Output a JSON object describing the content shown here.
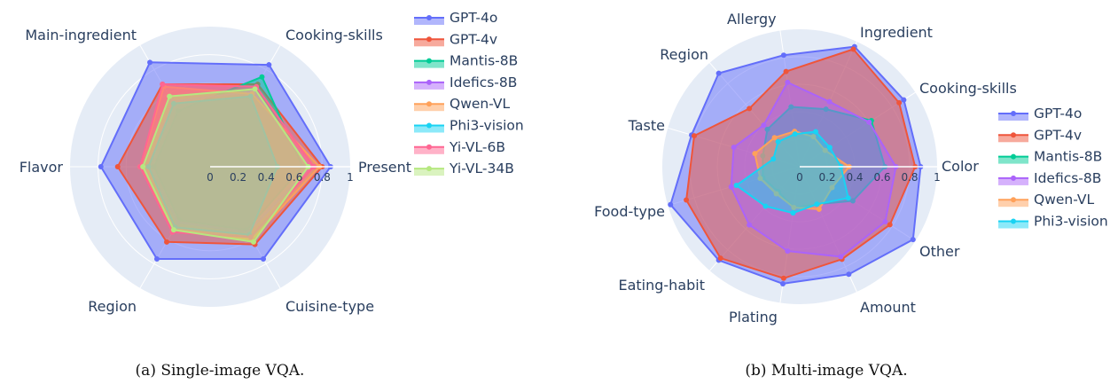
{
  "chart_data": [
    {
      "type": "radar",
      "caption": "(a) Single-image VQA.",
      "axes": [
        "Presentation",
        "Cooking-skills",
        "Main-ingredient",
        "Flavor",
        "Region",
        "Cuisine-type"
      ],
      "axis_labels_shown": [
        "Present",
        "Cooking-skills",
        "Main-ingredient",
        "Flavor",
        "Region",
        "Cuisine-type"
      ],
      "range": [
        0,
        1
      ],
      "ticks": [
        "0",
        "0.2",
        "0.4",
        "0.6",
        "0.8",
        "1"
      ],
      "legend_position": "right",
      "series": [
        {
          "name": "GPT-4o",
          "color": "#636efa",
          "values": [
            0.86,
            0.84,
            0.86,
            0.78,
            0.76,
            0.76
          ]
        },
        {
          "name": "GPT-4v",
          "color": "#ef553b",
          "values": [
            0.8,
            0.68,
            0.68,
            0.66,
            0.62,
            0.64
          ]
        },
        {
          "name": "Mantis-8B",
          "color": "#00cc96",
          "values": [
            0.66,
            0.74,
            0.46,
            0.4,
            0.44,
            0.52
          ]
        },
        {
          "name": "Idefics-8B",
          "color": "#ab63fa",
          "values": [
            0.72,
            0.62,
            0.54,
            0.44,
            0.46,
            0.54
          ]
        },
        {
          "name": "Qwen-VL",
          "color": "#ffa15a",
          "values": [
            0.78,
            0.6,
            0.66,
            0.5,
            0.52,
            0.6
          ]
        },
        {
          "name": "Phi3-vision",
          "color": "#19d3f3",
          "values": [
            0.48,
            0.58,
            0.52,
            0.44,
            0.5,
            0.56
          ]
        },
        {
          "name": "Yi-VL-6B",
          "color": "#ff6692",
          "values": [
            0.74,
            0.66,
            0.68,
            0.5,
            0.54,
            0.58
          ]
        },
        {
          "name": "Yi-VL-34B",
          "color": "#b6e880",
          "values": [
            0.7,
            0.64,
            0.58,
            0.48,
            0.52,
            0.62
          ]
        }
      ]
    },
    {
      "type": "radar",
      "caption": "(b) Multi-image VQA.",
      "axes": [
        "Color",
        "Cooking-skills",
        "Ingredient",
        "Allergy",
        "Region",
        "Taste",
        "Food-type",
        "Eating-habit",
        "Plating",
        "Amount",
        "Other"
      ],
      "axis_labels_shown": [
        "Color",
        "Cooking-skills",
        "Ingredient",
        "Allergy",
        "Region",
        "Taste",
        "Food-type",
        "Eating-habit",
        "Plating",
        "Amount",
        "Other"
      ],
      "range": [
        0,
        1
      ],
      "ticks": [
        "0",
        "0.2",
        "0.4",
        "0.6",
        "0.8",
        "1"
      ],
      "legend_position": "right",
      "series": [
        {
          "name": "GPT-4o",
          "color": "#636efa",
          "values": [
            0.88,
            0.9,
            0.96,
            0.82,
            0.9,
            0.82,
            0.98,
            0.9,
            0.86,
            0.86,
            0.98
          ]
        },
        {
          "name": "GPT-4v",
          "color": "#ef553b",
          "values": [
            0.84,
            0.86,
            0.94,
            0.7,
            0.56,
            0.8,
            0.86,
            0.88,
            0.82,
            0.74,
            0.78
          ]
        },
        {
          "name": "Mantis-8B",
          "color": "#00cc96",
          "values": [
            0.62,
            0.62,
            0.46,
            0.44,
            0.36,
            0.28,
            0.28,
            0.24,
            0.3,
            0.3,
            0.46
          ]
        },
        {
          "name": "Idefics-8B",
          "color": "#ab63fa",
          "values": [
            0.7,
            0.6,
            0.52,
            0.62,
            0.4,
            0.5,
            0.52,
            0.56,
            0.62,
            0.72,
            0.74
          ]
        },
        {
          "name": "Qwen-VL",
          "color": "#ffa15a",
          "values": [
            0.36,
            0.22,
            0.24,
            0.26,
            0.28,
            0.34,
            0.3,
            0.26,
            0.3,
            0.34,
            0.28
          ]
        },
        {
          "name": "Phi3-vision",
          "color": "#19d3f3",
          "values": [
            0.3,
            0.26,
            0.28,
            0.24,
            0.24,
            0.2,
            0.48,
            0.38,
            0.34,
            0.3,
            0.42
          ]
        }
      ]
    }
  ]
}
